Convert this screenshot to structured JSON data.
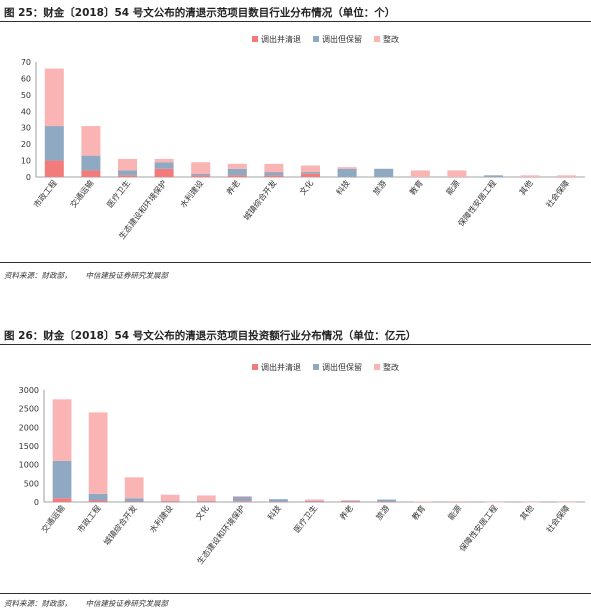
{
  "figures": [
    {
      "title": "图 25：财金〔2018〕54 号文公布的清退示范项目数目行业分布情况（单位：个）",
      "source_label": "资料来源：财政部，",
      "source_org": "中信建投证券研究发展部"
    },
    {
      "title": "图 26：财金〔2018〕54 号文公布的清退示范项目投资额行业分布情况（单位：亿元）",
      "source_label": "资料来源：财政部，",
      "source_org": "中信建投证券研究发展部"
    }
  ],
  "colors": {
    "red": "#f47b7b",
    "blue": "#8ea9c1",
    "pink": "#fbb4b4"
  },
  "chart_data": [
    {
      "type": "bar",
      "stacked": true,
      "title": "",
      "xlabel": "",
      "ylabel": "",
      "ylim": [
        0,
        70
      ],
      "yticks": [
        0,
        10,
        20,
        30,
        40,
        50,
        60,
        70
      ],
      "legend_position": "top-right",
      "categories": [
        "市政工程",
        "交通运输",
        "医疗卫生",
        "生态建设和环境保护",
        "水利建设",
        "养老",
        "城镇综合开发",
        "文化",
        "科技",
        "旅游",
        "教育",
        "能源",
        "保障性安居工程",
        "其他",
        "社会保障"
      ],
      "series": [
        {
          "name": "调出并清退",
          "color": "#f47b7b",
          "values": [
            10,
            4,
            1,
            5,
            1,
            1,
            1,
            2,
            0,
            0,
            0,
            0,
            0,
            0,
            0
          ]
        },
        {
          "name": "调出但保留",
          "color": "#8ea9c1",
          "values": [
            21,
            9,
            3,
            4,
            1,
            4,
            2,
            1,
            5,
            5,
            0,
            0,
            1,
            0,
            0
          ]
        },
        {
          "name": "整改",
          "color": "#fbb4b4",
          "values": [
            35,
            18,
            7,
            2,
            7,
            3,
            5,
            4,
            1,
            0,
            4,
            4,
            0,
            1,
            1
          ]
        }
      ]
    },
    {
      "type": "bar",
      "stacked": true,
      "title": "",
      "xlabel": "",
      "ylabel": "",
      "ylim": [
        0,
        3000
      ],
      "yticks": [
        0,
        500,
        1000,
        1500,
        2000,
        2500,
        3000
      ],
      "legend_position": "top-right",
      "categories": [
        "交通运输",
        "市政工程",
        "城镇综合开发",
        "水利建设",
        "文化",
        "生态建设和环境保护",
        "科技",
        "医疗卫生",
        "养老",
        "旅游",
        "教育",
        "能源",
        "保障性安居工程",
        "其他",
        "社会保障"
      ],
      "series": [
        {
          "name": "调出并清退",
          "color": "#f47b7b",
          "values": [
            100,
            40,
            10,
            5,
            5,
            20,
            5,
            20,
            10,
            5,
            0,
            0,
            0,
            0,
            0
          ]
        },
        {
          "name": "调出但保留",
          "color": "#8ea9c1",
          "values": [
            1000,
            180,
            90,
            20,
            20,
            120,
            70,
            10,
            20,
            60,
            0,
            0,
            0,
            0,
            0
          ]
        },
        {
          "name": "整改",
          "color": "#fbb4b4",
          "values": [
            1650,
            2180,
            560,
            170,
            150,
            20,
            0,
            40,
            20,
            0,
            15,
            20,
            5,
            5,
            5
          ]
        }
      ]
    }
  ]
}
